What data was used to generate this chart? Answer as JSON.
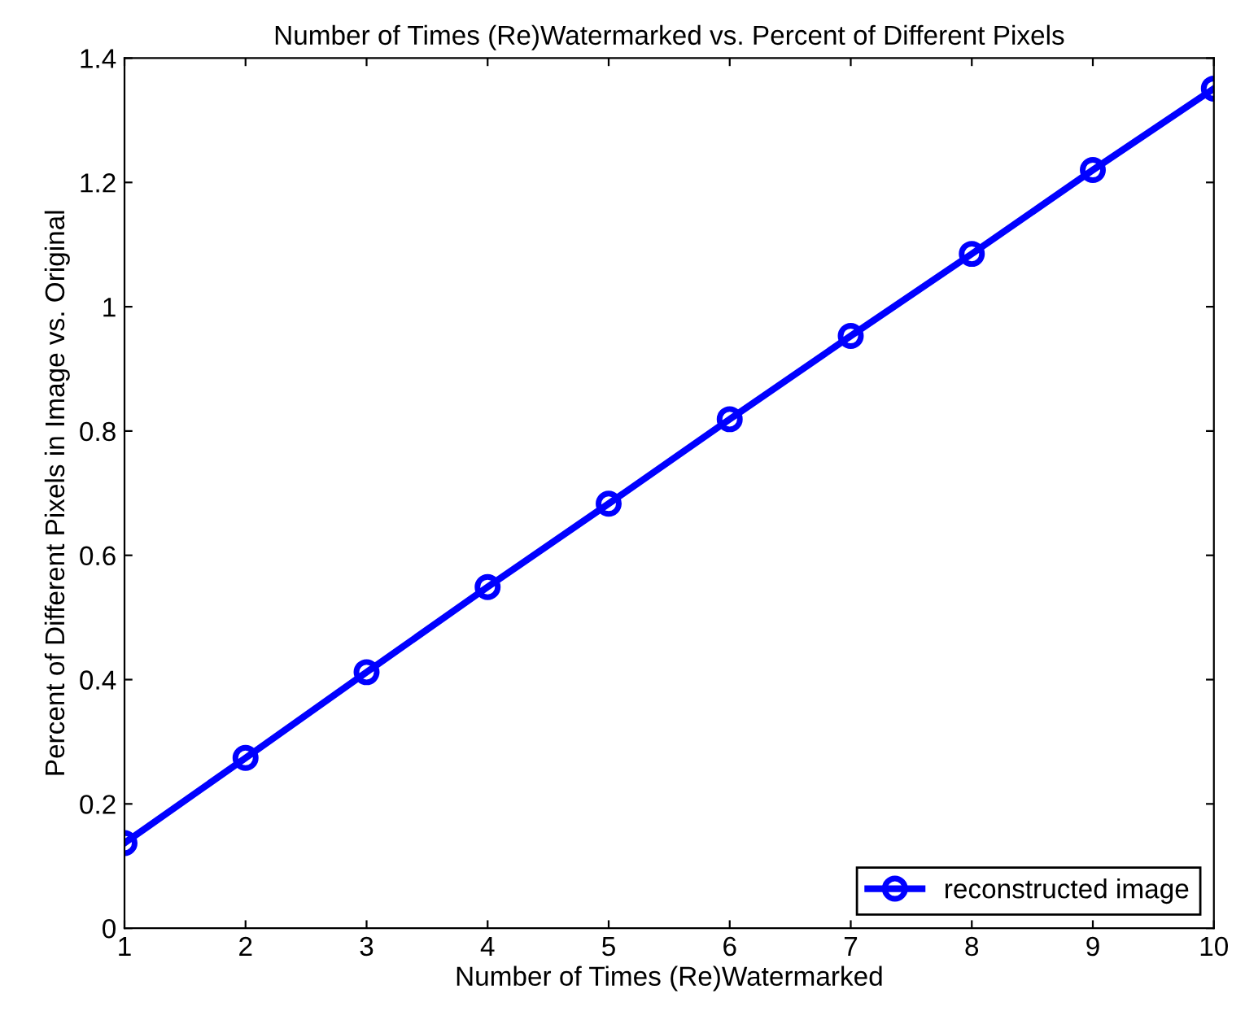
{
  "chart_data": {
    "type": "line",
    "title": "Number of Times (Re)Watermarked vs. Percent of Different Pixels",
    "xlabel": "Number of Times (Re)Watermarked",
    "ylabel": "Percent of Different Pixels in Image vs. Original",
    "x": [
      1,
      2,
      3,
      4,
      5,
      6,
      7,
      8,
      9,
      10
    ],
    "series": [
      {
        "name": "reconstructed image",
        "color": "#0000ff",
        "values": [
          0.137,
          0.274,
          0.412,
          0.549,
          0.683,
          0.819,
          0.953,
          1.085,
          1.22,
          1.351
        ]
      }
    ],
    "xlim": [
      1,
      10
    ],
    "xticks": [
      1,
      2,
      3,
      4,
      5,
      6,
      7,
      8,
      9,
      10
    ],
    "ylim": [
      0,
      1.4
    ],
    "yticks": [
      0,
      0.2,
      0.4,
      0.6,
      0.8,
      1,
      1.2,
      1.4
    ],
    "grid": false,
    "legend": "bottom right",
    "marker": "circle",
    "line_style": "solid"
  }
}
